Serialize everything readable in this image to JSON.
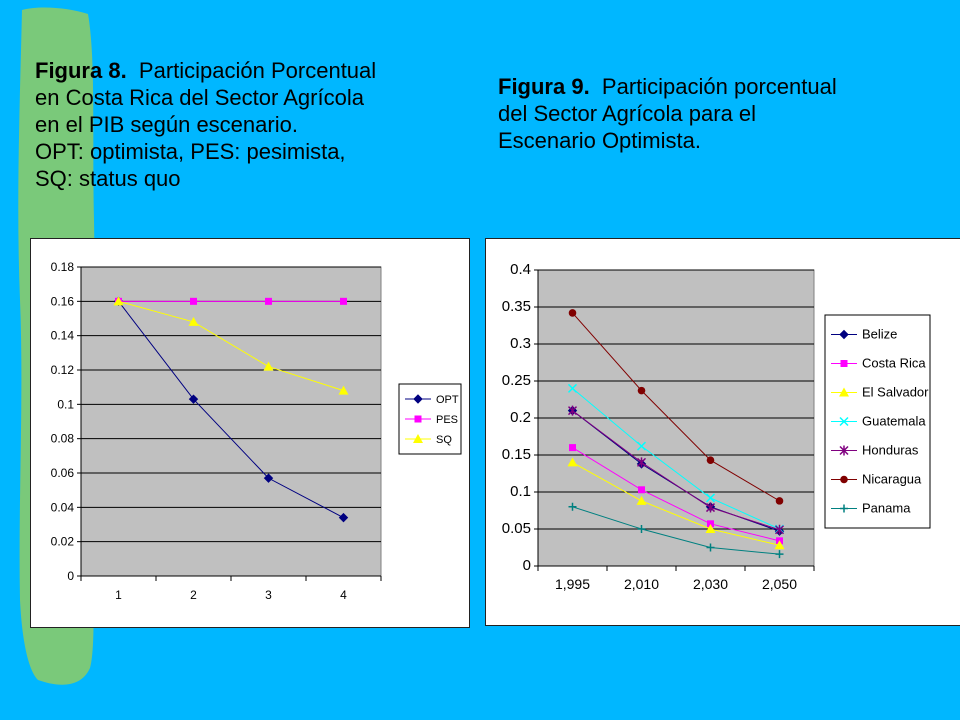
{
  "captions": {
    "fig8": {
      "label": "Figura 8.",
      "text_line1": "Participación Porcentual",
      "text_rest": [
        "en Costa Rica del Sector Agrícola",
        "en el PIB según escenario.",
        "OPT: optimista, PES: pesimista,",
        "SQ: status quo"
      ]
    },
    "fig9": {
      "label": "Figura 9.",
      "text_line1": "Participación porcentual",
      "text_rest": [
        "del Sector Agrícola para el",
        "Escenario Optimista."
      ]
    }
  },
  "colors": {
    "background": "#00b7ff",
    "accent_strip": "#7ac97a",
    "plot_area": "#c0c0c0"
  },
  "chart_data": [
    {
      "type": "line",
      "x": [
        "1",
        "2",
        "3",
        "4"
      ],
      "ylim": [
        0,
        0.18
      ],
      "yticks": [
        "0",
        "0.02",
        "0.04",
        "0.06",
        "0.08",
        "0.1",
        "0.12",
        "0.14",
        "0.16",
        "0.18"
      ],
      "grid": true,
      "legend_position": "right",
      "series": [
        {
          "name": "OPT",
          "color": "#000080",
          "marker": "diamond",
          "values": [
            0.16,
            0.103,
            0.057,
            0.034
          ]
        },
        {
          "name": "PES",
          "color": "#ff00ff",
          "marker": "square",
          "values": [
            0.16,
            0.16,
            0.16,
            0.16
          ]
        },
        {
          "name": "SQ",
          "color": "#ffff00",
          "marker": "triangle",
          "values": [
            0.16,
            0.148,
            0.122,
            0.108
          ]
        }
      ]
    },
    {
      "type": "line",
      "x": [
        "1,995",
        "2,010",
        "2,030",
        "2,050"
      ],
      "ylim": [
        0,
        0.4
      ],
      "yticks": [
        "0",
        "0.05",
        "0.1",
        "0.15",
        "0.2",
        "0.25",
        "0.3",
        "0.35",
        "0.4"
      ],
      "grid": true,
      "legend_position": "right",
      "series": [
        {
          "name": "Belize",
          "color": "#000080",
          "marker": "diamond",
          "values": [
            0.21,
            0.138,
            0.08,
            0.047
          ]
        },
        {
          "name": "Costa Rica",
          "color": "#ff00ff",
          "marker": "square",
          "values": [
            0.16,
            0.103,
            0.057,
            0.034
          ]
        },
        {
          "name": "El Salvador",
          "color": "#ffff00",
          "marker": "triangle",
          "values": [
            0.14,
            0.088,
            0.05,
            0.028
          ]
        },
        {
          "name": "Guatemala",
          "color": "#00ffff",
          "marker": "x",
          "values": [
            0.24,
            0.162,
            0.092,
            0.05
          ]
        },
        {
          "name": "Honduras",
          "color": "#800080",
          "marker": "star",
          "values": [
            0.21,
            0.14,
            0.079,
            0.049
          ]
        },
        {
          "name": "Nicaragua",
          "color": "#800000",
          "marker": "circle",
          "values": [
            0.342,
            0.237,
            0.143,
            0.088
          ]
        },
        {
          "name": "Panama",
          "color": "#008080",
          "marker": "plus",
          "values": [
            0.08,
            0.05,
            0.025,
            0.016
          ]
        }
      ]
    }
  ]
}
